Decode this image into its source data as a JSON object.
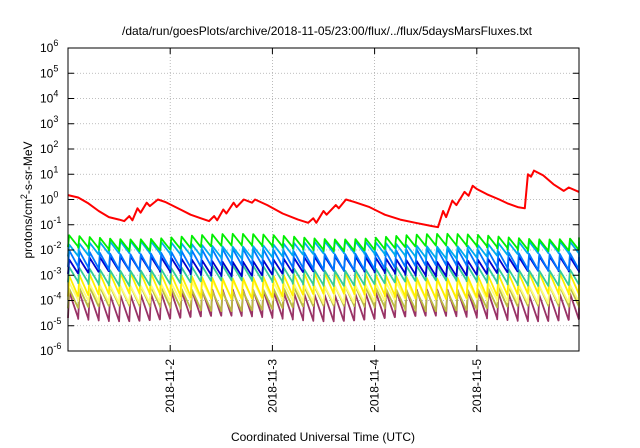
{
  "chart_data": {
    "type": "line",
    "title": "/data/run/goesPlots/archive/2018-11-05/23:00/flux/../flux/5daysMarsFluxes.txt",
    "xlabel": "Coordinated Universal Time (UTC)",
    "ylabel": "protons/cm2-s-sr-MeV",
    "ylabel_parts": {
      "prefix": "protons/cm",
      "superscript": "2",
      "suffix": "-s-sr-MeV"
    },
    "xlim": [
      1.0,
      6.0
    ],
    "xlim_note": "days of November 2018",
    "ylim": [
      1e-06,
      1000000.0
    ],
    "yscale": "log",
    "grid": true,
    "y_ticks": [
      {
        "exp": -6,
        "base": "10",
        "sup": "-6"
      },
      {
        "exp": -5,
        "base": "10",
        "sup": "-5"
      },
      {
        "exp": -4,
        "base": "10",
        "sup": "-4"
      },
      {
        "exp": -3,
        "base": "10",
        "sup": "-3"
      },
      {
        "exp": -2,
        "base": "10",
        "sup": "-2"
      },
      {
        "exp": -1,
        "base": "10",
        "sup": "-1"
      },
      {
        "exp": 0,
        "base": "10",
        "sup": "0"
      },
      {
        "exp": 1,
        "base": "10",
        "sup": "1"
      },
      {
        "exp": 2,
        "base": "10",
        "sup": "2"
      },
      {
        "exp": 3,
        "base": "10",
        "sup": "3"
      },
      {
        "exp": 4,
        "base": "10",
        "sup": "4"
      },
      {
        "exp": 5,
        "base": "10",
        "sup": "5"
      },
      {
        "exp": 6,
        "base": "10",
        "sup": "6"
      }
    ],
    "x_ticks": [
      {
        "day": 2,
        "label": "2018-11-2"
      },
      {
        "day": 3,
        "label": "2018-11-3"
      },
      {
        "day": 4,
        "label": "2018-11-4"
      },
      {
        "day": 5,
        "label": "2018-11-5"
      }
    ],
    "series": [
      {
        "color": "#ff0000",
        "points": [
          [
            1.0,
            1.5
          ],
          [
            1.1,
            1.2
          ],
          [
            1.2,
            0.7
          ],
          [
            1.3,
            0.35
          ],
          [
            1.4,
            0.2
          ],
          [
            1.5,
            0.16
          ],
          [
            1.55,
            0.14
          ],
          [
            1.6,
            0.22
          ],
          [
            1.63,
            0.15
          ],
          [
            1.68,
            0.45
          ],
          [
            1.71,
            0.3
          ],
          [
            1.77,
            0.75
          ],
          [
            1.8,
            0.55
          ],
          [
            1.88,
            1.0
          ],
          [
            1.95,
            0.8
          ],
          [
            2.1,
            0.4
          ],
          [
            2.2,
            0.25
          ],
          [
            2.3,
            0.18
          ],
          [
            2.38,
            0.14
          ],
          [
            2.43,
            0.22
          ],
          [
            2.46,
            0.15
          ],
          [
            2.52,
            0.4
          ],
          [
            2.55,
            0.28
          ],
          [
            2.62,
            0.75
          ],
          [
            2.65,
            0.5
          ],
          [
            2.72,
            1.0
          ],
          [
            2.8,
            0.75
          ],
          [
            2.83,
            1.0
          ],
          [
            2.95,
            0.6
          ],
          [
            3.1,
            0.28
          ],
          [
            3.25,
            0.16
          ],
          [
            3.35,
            0.12
          ],
          [
            3.4,
            0.18
          ],
          [
            3.43,
            0.12
          ],
          [
            3.5,
            0.35
          ],
          [
            3.53,
            0.25
          ],
          [
            3.62,
            0.6
          ],
          [
            3.65,
            0.45
          ],
          [
            3.72,
            1.0
          ],
          [
            3.8,
            0.8
          ],
          [
            3.95,
            0.5
          ],
          [
            4.1,
            0.25
          ],
          [
            4.25,
            0.16
          ],
          [
            4.4,
            0.12
          ],
          [
            4.55,
            0.09
          ],
          [
            4.62,
            0.08
          ],
          [
            4.67,
            0.35
          ],
          [
            4.7,
            0.2
          ],
          [
            4.76,
            0.9
          ],
          [
            4.8,
            0.6
          ],
          [
            4.88,
            2.0
          ],
          [
            4.92,
            1.4
          ],
          [
            4.96,
            3.5
          ],
          [
            5.0,
            2.6
          ],
          [
            5.1,
            1.6
          ],
          [
            5.22,
            1.0
          ],
          [
            5.3,
            0.7
          ],
          [
            5.4,
            0.5
          ],
          [
            5.47,
            0.45
          ],
          [
            5.5,
            10.0
          ],
          [
            5.53,
            8.0
          ],
          [
            5.56,
            14.0
          ],
          [
            5.65,
            9.0
          ],
          [
            5.75,
            4.0
          ],
          [
            5.85,
            2.2
          ],
          [
            5.9,
            3.0
          ],
          [
            6.0,
            2.0
          ]
        ]
      }
    ],
    "sawtooth_series": [
      {
        "color": "#00ee00",
        "high": 0.035,
        "low": 0.012
      },
      {
        "color": "#00aaee",
        "high": 0.018,
        "low": 0.006
      },
      {
        "color": "#0077ff",
        "high": 0.009,
        "low": 0.002
      },
      {
        "color": "#0000cc",
        "high": 0.0045,
        "low": 0.0012
      },
      {
        "color": "#33cc99",
        "high": 0.002,
        "low": 0.0005
      },
      {
        "color": "#ffee00",
        "high": 0.001,
        "low": 0.00015
      },
      {
        "color": "#ffff77",
        "high": 0.0005,
        "low": 0.0001
      },
      {
        "color": "#bbbb44",
        "high": 0.0003,
        "low": 5e-05
      },
      {
        "color": "#993366",
        "high": 0.00022,
        "low": 2e-05
      }
    ],
    "sawtooth_period_days": 0.1
  }
}
